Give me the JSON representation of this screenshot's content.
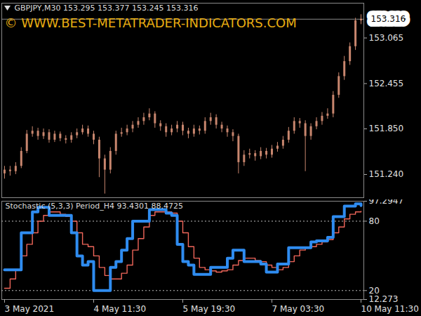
{
  "chart_data": [
    {
      "type": "candlestick",
      "title": "GBPJPY,M30 153.295 153.377 153.245 153.316",
      "annotation": "© WWW.BEST-METATRADER-INDICATORS.COM",
      "categories": [
        "3 May 2021",
        null,
        null,
        null,
        null,
        null,
        null,
        null,
        null,
        null,
        null,
        null,
        null,
        null,
        null,
        null,
        "4 May 11:30",
        null,
        null,
        null,
        null,
        null,
        null,
        null,
        null,
        null,
        null,
        null,
        null,
        null,
        null,
        null,
        "5 May 19:30",
        null,
        null,
        null,
        null,
        null,
        null,
        null,
        null,
        null,
        null,
        null,
        null,
        null,
        null,
        null,
        "7 May 03:30",
        null,
        null,
        null,
        null,
        null,
        null,
        null,
        null,
        null,
        null,
        null,
        null,
        null,
        null,
        null,
        "10 May 11:30"
      ],
      "open": [
        151.25,
        151.3,
        151.28,
        151.35,
        151.55,
        151.78,
        151.82,
        151.75,
        151.8,
        151.7,
        151.78,
        151.72,
        151.7,
        151.76,
        151.8,
        151.85,
        151.78,
        151.7,
        151.45,
        151.3,
        151.55,
        151.78,
        151.8,
        151.85,
        151.9,
        151.95,
        152.0,
        152.05,
        151.92,
        151.88,
        151.8,
        151.85,
        151.9,
        151.82,
        151.78,
        151.85,
        151.82,
        151.95,
        152.0,
        151.9,
        151.85,
        151.8,
        151.75,
        151.4,
        151.5,
        151.52,
        151.48,
        151.55,
        151.5,
        151.58,
        151.62,
        151.7,
        151.82,
        151.95,
        151.92,
        151.75,
        151.88,
        151.95,
        152.02,
        152.05,
        152.3,
        152.55,
        152.75,
        152.95,
        153.295
      ],
      "high": [
        151.35,
        151.35,
        151.4,
        151.6,
        151.83,
        151.88,
        151.86,
        151.85,
        151.84,
        151.82,
        151.81,
        151.76,
        151.8,
        151.85,
        151.9,
        151.89,
        151.82,
        151.74,
        151.5,
        151.6,
        151.82,
        151.86,
        151.9,
        151.95,
        152.0,
        152.06,
        152.12,
        152.08,
        151.96,
        151.92,
        151.9,
        151.95,
        151.94,
        151.86,
        151.9,
        151.89,
        152.0,
        152.06,
        152.04,
        151.94,
        151.89,
        151.84,
        151.78,
        151.56,
        151.58,
        151.56,
        151.6,
        151.59,
        151.63,
        151.67,
        151.75,
        151.87,
        152.0,
        151.99,
        151.96,
        151.92,
        152.0,
        152.07,
        152.12,
        152.35,
        152.6,
        152.82,
        153.0,
        153.33,
        153.377
      ],
      "low": [
        151.18,
        151.22,
        151.24,
        151.32,
        151.52,
        151.74,
        151.7,
        151.71,
        151.66,
        151.67,
        151.68,
        151.65,
        151.66,
        151.72,
        151.77,
        151.74,
        151.64,
        151.2,
        150.98,
        151.25,
        151.5,
        151.74,
        151.76,
        151.8,
        151.86,
        151.9,
        151.96,
        151.86,
        151.82,
        151.74,
        151.76,
        151.8,
        151.76,
        151.72,
        151.74,
        151.77,
        151.78,
        151.9,
        151.85,
        151.8,
        151.74,
        151.68,
        151.25,
        151.35,
        151.45,
        151.42,
        151.44,
        151.45,
        151.46,
        151.54,
        151.58,
        151.66,
        151.78,
        151.86,
        151.28,
        151.7,
        151.84,
        151.9,
        151.98,
        152.0,
        152.26,
        152.5,
        152.7,
        152.9,
        153.245
      ],
      "close": [
        151.3,
        151.28,
        151.35,
        151.55,
        151.78,
        151.82,
        151.75,
        151.8,
        151.7,
        151.78,
        151.72,
        151.7,
        151.76,
        151.8,
        151.85,
        151.78,
        151.7,
        151.45,
        151.3,
        151.55,
        151.78,
        151.8,
        151.85,
        151.9,
        151.95,
        152.0,
        152.05,
        151.92,
        151.88,
        151.8,
        151.85,
        151.9,
        151.82,
        151.78,
        151.85,
        151.82,
        151.95,
        152.0,
        151.9,
        151.85,
        151.8,
        151.75,
        151.4,
        151.5,
        151.52,
        151.48,
        151.55,
        151.5,
        151.58,
        151.62,
        151.7,
        151.82,
        151.95,
        151.92,
        151.75,
        151.88,
        151.95,
        152.02,
        152.05,
        152.3,
        152.55,
        152.75,
        152.95,
        153.295,
        153.316
      ],
      "color": "#c8866e",
      "current_price": 153.316,
      "ylim": [
        150.93,
        153.53
      ],
      "yticks": [
        {
          "value": 151.24,
          "label": "151.240"
        },
        {
          "value": 151.85,
          "label": "151.850"
        },
        152.455,
        153.065
      ],
      "tick_labels": "y"
    },
    {
      "type": "line",
      "title": "Stochastic (5,3,3) Period_H4 93.4301 88.4725",
      "categories": [
        "3 May 2021",
        null,
        null,
        null,
        null,
        null,
        null,
        null,
        null,
        null,
        null,
        null,
        null,
        null,
        null,
        null,
        "4 May 11:30",
        null,
        null,
        null,
        null,
        null,
        null,
        null,
        null,
        null,
        null,
        null,
        null,
        null,
        null,
        null,
        "5 May 19:30",
        null,
        null,
        null,
        null,
        null,
        null,
        null,
        null,
        null,
        null,
        null,
        null,
        null,
        null,
        null,
        "7 May 03:30",
        null,
        null,
        null,
        null,
        null,
        null,
        null,
        null,
        null,
        null,
        null,
        null,
        null,
        null,
        null,
        "10 May 11:30"
      ],
      "series": [
        {
          "color": "#2f8cf0",
          "values": [
            38,
            38,
            38,
            70,
            70,
            88,
            92,
            92,
            85,
            85,
            85,
            85,
            70,
            50,
            42,
            45,
            20,
            20,
            20,
            40,
            45,
            55,
            65,
            80,
            80,
            80,
            90,
            90,
            90,
            87,
            85,
            60,
            45,
            42,
            34,
            34,
            34,
            40,
            40,
            40,
            48,
            55,
            55,
            45,
            45,
            45,
            43,
            36,
            36,
            43,
            43,
            57,
            57,
            57,
            57,
            62,
            63,
            63,
            66,
            84,
            84,
            93,
            93,
            95,
            93.4301
          ]
        },
        {
          "color": "#f0665a",
          "values": [
            22,
            30,
            38,
            50,
            60,
            70,
            80,
            85,
            88,
            88,
            86,
            84,
            80,
            70,
            60,
            58,
            50,
            40,
            33,
            30,
            30,
            35,
            42,
            55,
            65,
            75,
            85,
            88,
            88,
            88,
            87,
            80,
            70,
            58,
            48,
            40,
            38,
            37,
            36,
            37,
            38,
            42,
            46,
            48,
            48,
            46,
            45,
            42,
            40,
            38,
            40,
            45,
            50,
            55,
            57,
            58,
            60,
            62,
            64,
            70,
            75,
            82,
            86,
            88,
            88.4725
          ]
        }
      ],
      "levels": [
        20,
        80
      ],
      "ylim": [
        12.273,
        97.2947
      ],
      "yticks": [
        12.273,
        20,
        80,
        97.2947
      ]
    }
  ]
}
